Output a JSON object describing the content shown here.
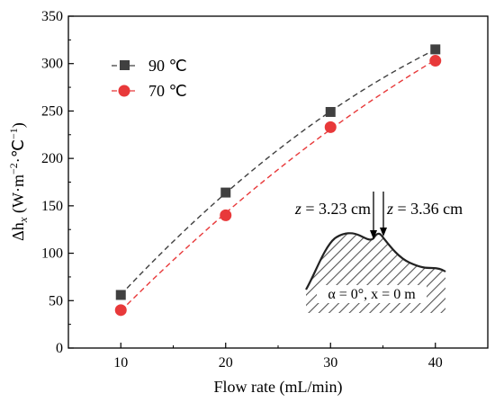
{
  "chart_data": {
    "type": "line",
    "xlabel": "Flow rate (mL/min)",
    "ylabel_main": "Δh",
    "ylabel_sub": "x",
    "ylabel_units": " (W·m",
    "ylabel_units_mid": "·℃",
    "ylabel_units_end": ")",
    "ylabel_exp": "−2",
    "ylabel_exp2": "−1",
    "xlim": [
      5,
      45
    ],
    "ylim": [
      0,
      350
    ],
    "xticks": [
      10,
      20,
      30,
      40
    ],
    "yticks": [
      0,
      50,
      100,
      150,
      200,
      250,
      300,
      350
    ],
    "legend_position": "top-left",
    "series": [
      {
        "name": "90 ℃",
        "marker": "square",
        "color": "#404040",
        "x": [
          10,
          20,
          30,
          40
        ],
        "values": [
          56,
          164,
          249,
          315
        ]
      },
      {
        "name": "70 ℃",
        "marker": "circle",
        "color": "#e8393a",
        "x": [
          10,
          20,
          30,
          40
        ],
        "values": [
          40,
          140,
          233,
          303
        ]
      }
    ],
    "inset": {
      "label_left_var": "z",
      "label_left_value": " = 3.23 cm",
      "label_right_var": "z",
      "label_right_value": " = 3.36 cm",
      "caption": "α = 0°, x = 0 m"
    }
  }
}
